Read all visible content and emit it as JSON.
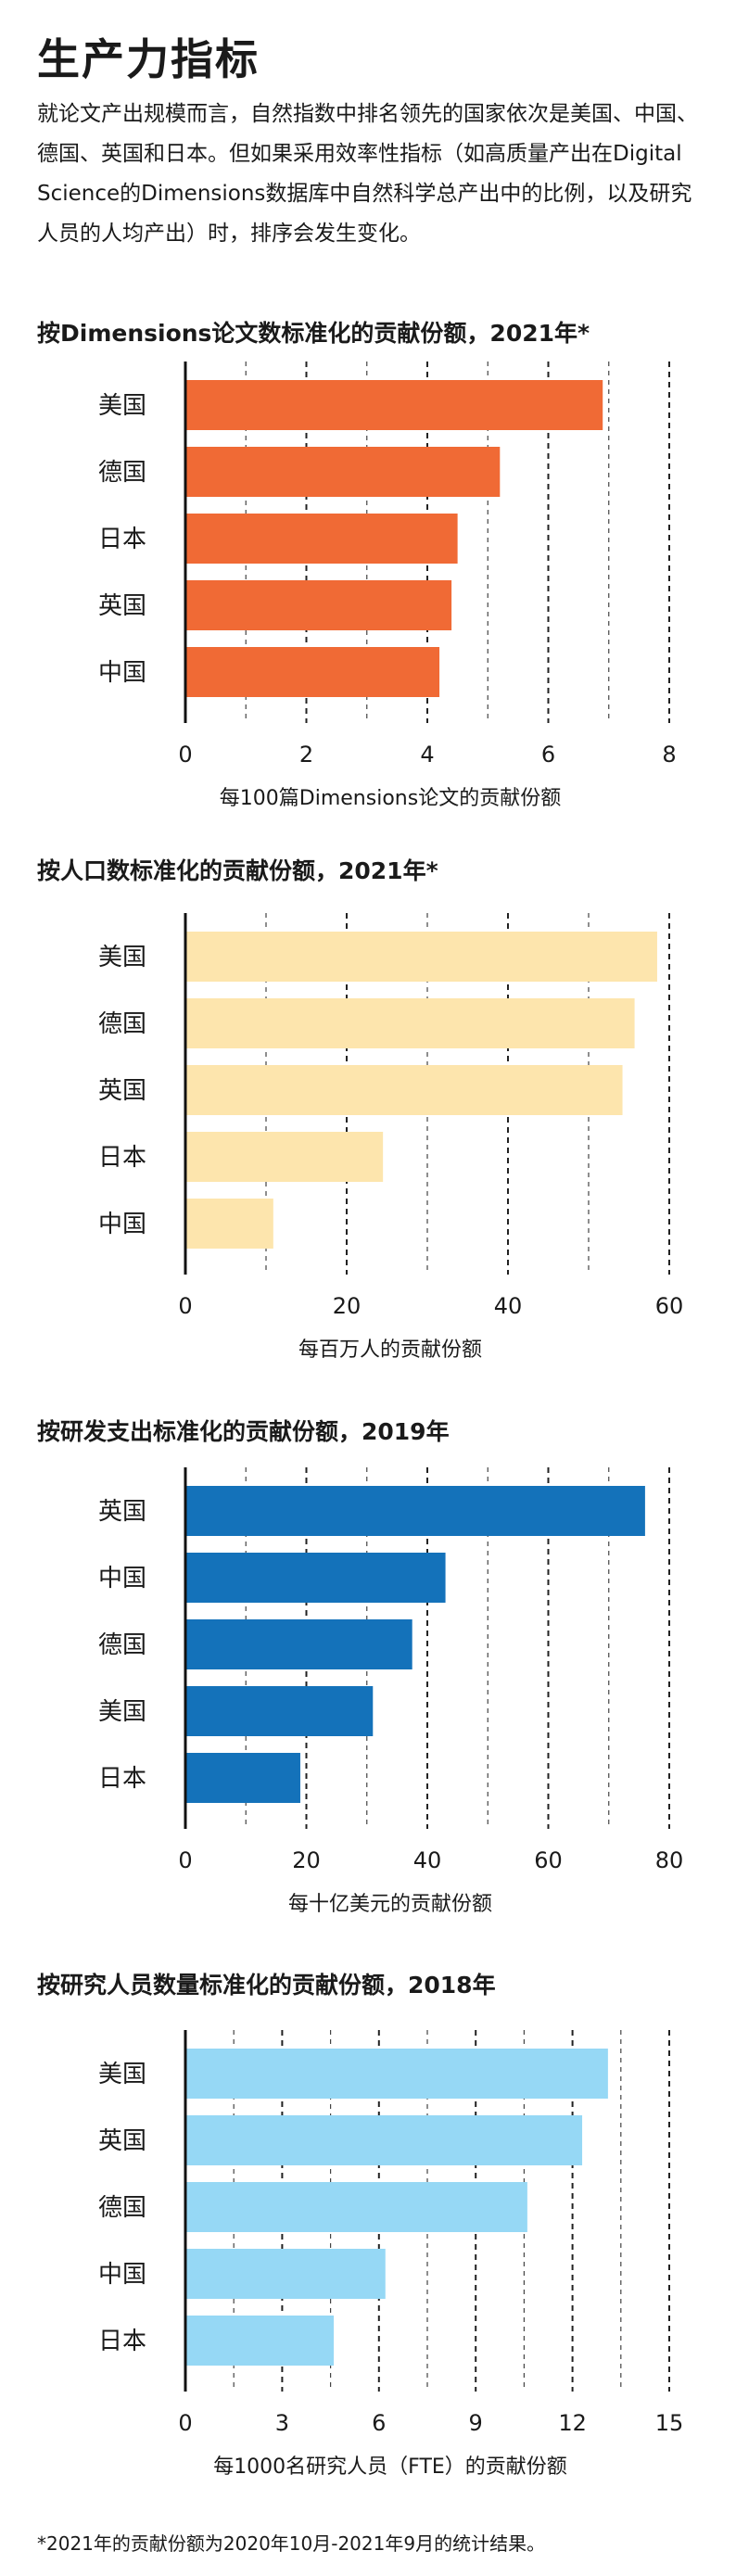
{
  "page": {
    "title": "生产力指标",
    "intro": "就论文产出规模而言，自然指数中排名领先的国家依次是美国、中国、德国、英国和日本。但如果采用效率性指标（如高质量产出在Digital Science的Dimensions数据库中自然科学总产出中的比例，以及研究人员的人均产出）时，排序会发生变化。",
    "footnote": "*2021年的贡献份额为2020年10月-2021年9月的统计结果。"
  },
  "chart_data": [
    {
      "type": "bar",
      "orientation": "horizontal",
      "title": "按Dimensions论文数标准化的贡献份额，2021年*",
      "xlabel": "每100篇Dimensions论文的贡献份额",
      "categories": [
        "美国",
        "德国",
        "日本",
        "英国",
        "中国"
      ],
      "values": [
        6.9,
        5.2,
        4.5,
        4.4,
        4.2
      ],
      "ticks": [
        "0",
        "2",
        "4",
        "6",
        "8"
      ],
      "xlim": [
        0,
        8
      ],
      "color": "#f06a35"
    },
    {
      "type": "bar",
      "orientation": "horizontal",
      "title": "按人口数标准化的贡献份额，2021年*",
      "xlabel": "每百万人的贡献份额",
      "categories": [
        "美国",
        "德国",
        "英国",
        "日本",
        "中国"
      ],
      "values": [
        58.5,
        55.7,
        54.2,
        24.5,
        10.9
      ],
      "ticks": [
        "0",
        "20",
        "40",
        "60"
      ],
      "xlim": [
        0,
        60
      ],
      "color": "#fde5ad"
    },
    {
      "type": "bar",
      "orientation": "horizontal",
      "title": "按研发支出标准化的贡献份额，2019年",
      "xlabel": "每十亿美元的贡献份额",
      "categories": [
        "英国",
        "中国",
        "德国",
        "美国",
        "日本"
      ],
      "values": [
        76,
        43,
        37.5,
        31,
        19
      ],
      "ticks": [
        "0",
        "20",
        "40",
        "60",
        "80"
      ],
      "xlim": [
        0,
        80
      ],
      "color": "#1472ba"
    },
    {
      "type": "bar",
      "orientation": "horizontal",
      "title": "按研究人员数量标准化的贡献份额，2018年",
      "xlabel": "每1000名研究人员（FTE）的贡献份额",
      "categories": [
        "美国",
        "英国",
        "德国",
        "中国",
        "日本"
      ],
      "values": [
        13.1,
        12.3,
        10.6,
        6.2,
        4.6
      ],
      "ticks": [
        "0",
        "3",
        "6",
        "9",
        "12",
        "15"
      ],
      "xlim": [
        0,
        15
      ],
      "color": "#96d8f5"
    }
  ]
}
